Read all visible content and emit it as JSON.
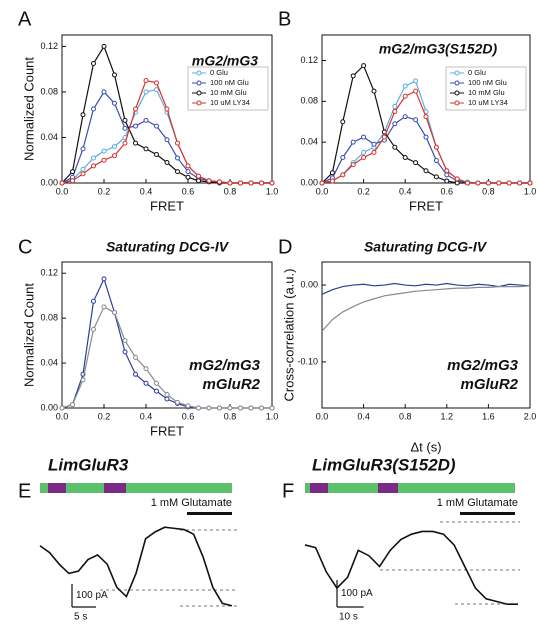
{
  "chart_data": [
    {
      "type": "line",
      "panel": "A",
      "title": "mG2/mG3",
      "title_color": "#5aaee0",
      "xlabel": "FRET",
      "ylabel": "Normalized Count",
      "x": [
        0,
        0.05,
        0.1,
        0.15,
        0.2,
        0.25,
        0.3,
        0.35,
        0.4,
        0.45,
        0.5,
        0.55,
        0.6,
        0.65,
        0.7,
        0.75,
        0.8,
        0.85,
        0.9,
        0.95,
        1.0
      ],
      "xlim": [
        0,
        1.0
      ],
      "xticks": [
        {
          "value": 0,
          "label": "0.0"
        },
        0.2,
        0.4,
        0.6,
        0.8,
        {
          "value": 1.0,
          "label": "1.0"
        }
      ],
      "ylim": [
        0,
        0.13
      ],
      "yticks": [
        {
          "value": 0,
          "label": "0.00"
        },
        0.04,
        0.08,
        0.12
      ],
      "legend": "upper right",
      "markers": true,
      "series": [
        {
          "name": "0 Glu",
          "color": "#5aaee0",
          "values": [
            0,
            0.003,
            0.012,
            0.022,
            0.028,
            0.032,
            0.04,
            0.062,
            0.08,
            0.082,
            0.062,
            0.035,
            0.015,
            0.006,
            0.002,
            0.001,
            0,
            0,
            0,
            0,
            0
          ]
        },
        {
          "name": "100 nM Glu",
          "color": "#3c4db3",
          "values": [
            0,
            0.005,
            0.03,
            0.065,
            0.08,
            0.07,
            0.048,
            0.05,
            0.055,
            0.05,
            0.038,
            0.022,
            0.01,
            0.004,
            0.002,
            0.001,
            0,
            0,
            0,
            0,
            0
          ]
        },
        {
          "name": "10 mM Glu",
          "color": "#111111",
          "values": [
            0,
            0.01,
            0.06,
            0.105,
            0.12,
            0.095,
            0.055,
            0.035,
            0.03,
            0.025,
            0.018,
            0.01,
            0.005,
            0.002,
            0.001,
            0,
            0,
            0,
            0,
            0,
            0
          ]
        },
        {
          "name": "10 uM LY34",
          "color": "#d8342c",
          "values": [
            0,
            0.002,
            0.008,
            0.015,
            0.02,
            0.024,
            0.035,
            0.065,
            0.09,
            0.088,
            0.065,
            0.035,
            0.015,
            0.006,
            0.002,
            0.001,
            0,
            0,
            0,
            0,
            0
          ]
        }
      ]
    },
    {
      "type": "line",
      "panel": "B",
      "title": "mG2/mG3(S152D)",
      "title_color": "#5aaee0",
      "xlabel": "FRET",
      "x": [
        0,
        0.05,
        0.1,
        0.15,
        0.2,
        0.25,
        0.3,
        0.35,
        0.4,
        0.45,
        0.5,
        0.55,
        0.6,
        0.65,
        0.7,
        0.75,
        0.8,
        0.85,
        0.9,
        0.95,
        1.0
      ],
      "xlim": [
        0,
        1.0
      ],
      "xticks": [
        {
          "value": 0,
          "label": "0.0"
        },
        0.2,
        0.4,
        0.6,
        0.8,
        {
          "value": 1.0,
          "label": "1.0"
        }
      ],
      "ylim": [
        0,
        0.145
      ],
      "yticks": [
        {
          "value": 0,
          "label": "0.00"
        },
        0.04,
        0.08,
        0.12
      ],
      "legend": "upper right",
      "markers": true,
      "series": [
        {
          "name": "0 Glu",
          "color": "#5aaee0",
          "values": [
            0,
            0.002,
            0.008,
            0.02,
            0.03,
            0.035,
            0.05,
            0.075,
            0.095,
            0.1,
            0.07,
            0.035,
            0.012,
            0.004,
            0.001,
            0,
            0,
            0,
            0,
            0,
            0
          ]
        },
        {
          "name": "100 nM Glu",
          "color": "#3c4db3",
          "values": [
            0,
            0.005,
            0.025,
            0.04,
            0.045,
            0.038,
            0.042,
            0.058,
            0.065,
            0.062,
            0.045,
            0.022,
            0.008,
            0.002,
            0,
            0,
            0,
            0,
            0,
            0,
            0
          ]
        },
        {
          "name": "10 mM Glu",
          "color": "#111111",
          "values": [
            0,
            0.01,
            0.06,
            0.105,
            0.115,
            0.09,
            0.05,
            0.035,
            0.025,
            0.02,
            0.012,
            0.006,
            0.002,
            0,
            0,
            0,
            0,
            0,
            0,
            0,
            0
          ]
        },
        {
          "name": "10 uM LY34",
          "color": "#d8342c",
          "values": [
            0,
            0.002,
            0.008,
            0.018,
            0.025,
            0.03,
            0.045,
            0.07,
            0.085,
            0.09,
            0.065,
            0.035,
            0.012,
            0.004,
            0,
            0,
            0,
            0,
            0,
            0,
            0
          ]
        }
      ]
    },
    {
      "type": "line",
      "panel": "C",
      "title": "Saturating DCG-IV",
      "title_color": "#111111",
      "xlabel": "FRET",
      "ylabel": "Normalized Count",
      "x": [
        0,
        0.05,
        0.1,
        0.15,
        0.2,
        0.25,
        0.3,
        0.35,
        0.4,
        0.45,
        0.5,
        0.55,
        0.6,
        0.65,
        0.7,
        0.75,
        0.8,
        0.85,
        0.9,
        0.95,
        1.0
      ],
      "xlim": [
        0,
        1.0
      ],
      "xticks": [
        {
          "value": 0,
          "label": "0.0"
        },
        0.2,
        0.4,
        0.6,
        0.8,
        {
          "value": 1.0,
          "label": "1.0"
        }
      ],
      "ylim": [
        0,
        0.13
      ],
      "yticks": [
        {
          "value": 0,
          "label": "0.00"
        },
        0.04,
        0.08,
        0.12
      ],
      "legend": "lower right",
      "markers": true,
      "series": [
        {
          "name": "mG2/mG3",
          "color": "#2d3c9e",
          "values": [
            0,
            0.003,
            0.03,
            0.095,
            0.115,
            0.085,
            0.05,
            0.03,
            0.022,
            0.015,
            0.008,
            0.004,
            0.001,
            0,
            0,
            0,
            0,
            0,
            0,
            0,
            0
          ]
        },
        {
          "name": "mGluR2",
          "color": "#8a8a8a",
          "values": [
            0,
            0.003,
            0.025,
            0.07,
            0.09,
            0.085,
            0.06,
            0.045,
            0.035,
            0.022,
            0.012,
            0.005,
            0.002,
            0,
            0,
            0,
            0,
            0,
            0,
            0,
            0
          ]
        }
      ]
    },
    {
      "type": "line",
      "panel": "D",
      "title": "Saturating DCG-IV",
      "title_color": "#111111",
      "xlabel": "Δt (s)",
      "ylabel": "Cross-correlation (a.u.)",
      "x": [
        0,
        0.1,
        0.2,
        0.3,
        0.4,
        0.5,
        0.6,
        0.7,
        0.8,
        0.9,
        1.0,
        1.1,
        1.2,
        1.3,
        1.4,
        1.5,
        1.6,
        1.7,
        1.8,
        1.9,
        2.0
      ],
      "xlim": [
        0,
        2.0
      ],
      "xticks": [
        {
          "value": 0,
          "label": "0.0"
        },
        0.4,
        0.8,
        1.2,
        1.6,
        {
          "value": 2.0,
          "label": "2.0"
        }
      ],
      "ylim": [
        -0.16,
        0.03
      ],
      "yticks": [
        {
          "value": 0,
          "label": "0.00"
        },
        {
          "value": -0.1,
          "label": "-0.10"
        }
      ],
      "legend": "lower right",
      "markers": false,
      "series": [
        {
          "name": "mG2/mG3",
          "color": "#2d3c9e",
          "values": [
            -0.012,
            -0.006,
            -0.002,
            0,
            0.001,
            -0.001,
            0,
            0.002,
            0,
            -0.001,
            0.001,
            0,
            0.002,
            0,
            -0.001,
            0.001,
            0,
            -0.002,
            0.001,
            0,
            -0.001
          ]
        },
        {
          "name": "mGluR2",
          "color": "#8a8a8a",
          "values": [
            -0.06,
            -0.045,
            -0.035,
            -0.028,
            -0.022,
            -0.018,
            -0.014,
            -0.012,
            -0.01,
            -0.008,
            -0.007,
            -0.006,
            -0.005,
            -0.004,
            -0.004,
            -0.003,
            -0.003,
            -0.002,
            -0.002,
            -0.002,
            -0.001
          ]
        }
      ]
    },
    {
      "type": "trace",
      "panel": "E",
      "title": "LimGluR3",
      "title_color": "#2d3c9e",
      "annotation": "1 mM Glutamate",
      "x": [
        0,
        2,
        4,
        6,
        8,
        10,
        12,
        14,
        16,
        18,
        20,
        22,
        24,
        26,
        28,
        30,
        32,
        34,
        36,
        38,
        40
      ],
      "xlim": [
        0,
        40
      ],
      "ylim": [
        -300,
        120
      ],
      "scalebar_y": {
        "value": 100,
        "label": "100 pA"
      },
      "scalebar_x": {
        "value": 5,
        "label": "5 s"
      },
      "series": [
        {
          "color": "#111111",
          "values": [
            0,
            -30,
            -80,
            -120,
            -110,
            -60,
            -40,
            -80,
            -180,
            -220,
            -120,
            30,
            60,
            80,
            75,
            70,
            50,
            -50,
            -180,
            -250,
            -260
          ]
        }
      ]
    },
    {
      "type": "trace",
      "panel": "F",
      "title": "LimGluR3(S152D)",
      "title_color": "#2d3c9e",
      "annotation": "1 mM Glutamate",
      "x": [
        0,
        4,
        8,
        12,
        16,
        20,
        24,
        28,
        32,
        36,
        40,
        44,
        48,
        52,
        56,
        60,
        64,
        68,
        72,
        76,
        80
      ],
      "xlim": [
        0,
        80
      ],
      "ylim": [
        -280,
        80
      ],
      "scalebar_y": {
        "value": 100,
        "label": "100 pA"
      },
      "scalebar_x": {
        "value": 10,
        "label": "10 s"
      },
      "series": [
        {
          "color": "#111111",
          "values": [
            -20,
            -30,
            -120,
            -180,
            -140,
            -40,
            -60,
            -100,
            -40,
            0,
            20,
            30,
            30,
            20,
            -20,
            -100,
            -180,
            -220,
            -230,
            -240,
            -240
          ]
        }
      ]
    }
  ]
}
